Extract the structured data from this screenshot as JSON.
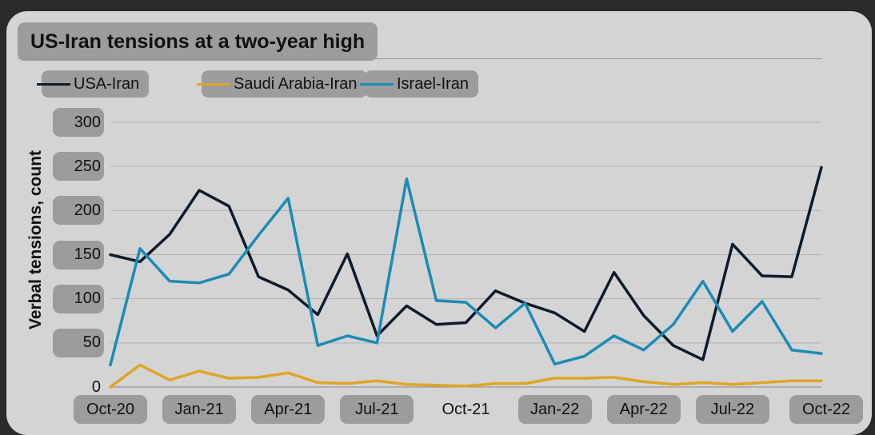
{
  "chart_data": {
    "type": "line",
    "title": "US-Iran tensions at a two-year high",
    "ylabel": "Verbal tensions, count",
    "xlabel": "",
    "ylim": [
      0,
      300
    ],
    "yticks": [
      "0",
      "50",
      "100",
      "150",
      "200",
      "250",
      "300"
    ],
    "xtick_labels": [
      "Oct-20",
      "Jan-21",
      "Apr-21",
      "Jul-21",
      "Oct-21",
      "Jan-22",
      "Apr-22",
      "Jul-22",
      "Oct-22"
    ],
    "x": [
      "Oct-20",
      "Nov-20",
      "Dec-20",
      "Jan-21",
      "Feb-21",
      "Mar-21",
      "Apr-21",
      "May-21",
      "Jun-21",
      "Jul-21",
      "Aug-21",
      "Sep-21",
      "Oct-21",
      "Nov-21",
      "Dec-21",
      "Jan-22",
      "Feb-22",
      "Mar-22",
      "Apr-22",
      "May-22",
      "Jun-22",
      "Jul-22",
      "Aug-22",
      "Sep-22",
      "Oct-22"
    ],
    "legend_position": "top-left",
    "grid": "horizontal",
    "series": [
      {
        "name": "USA-Iran",
        "color": "#0d1b2a",
        "values": [
          150,
          142,
          173,
          223,
          205,
          125,
          110,
          82,
          151,
          58,
          92,
          71,
          73,
          109,
          95,
          84,
          63,
          130,
          81,
          47,
          31,
          162,
          126,
          125,
          249
        ]
      },
      {
        "name": "Saudi Arabia-Iran",
        "color": "#e0a526",
        "values": [
          0,
          25,
          8,
          18,
          10,
          11,
          16,
          5,
          4,
          7,
          3,
          2,
          1,
          4,
          4,
          10,
          10,
          11,
          6,
          3,
          5,
          3,
          5,
          7,
          7
        ]
      },
      {
        "name": "Israel-Iran",
        "color": "#1a8cb5",
        "values": [
          25,
          157,
          120,
          118,
          128,
          172,
          214,
          47,
          58,
          50,
          236,
          98,
          96,
          67,
          95,
          26,
          35,
          58,
          42,
          71,
          120,
          63,
          97,
          42,
          38
        ]
      }
    ]
  }
}
